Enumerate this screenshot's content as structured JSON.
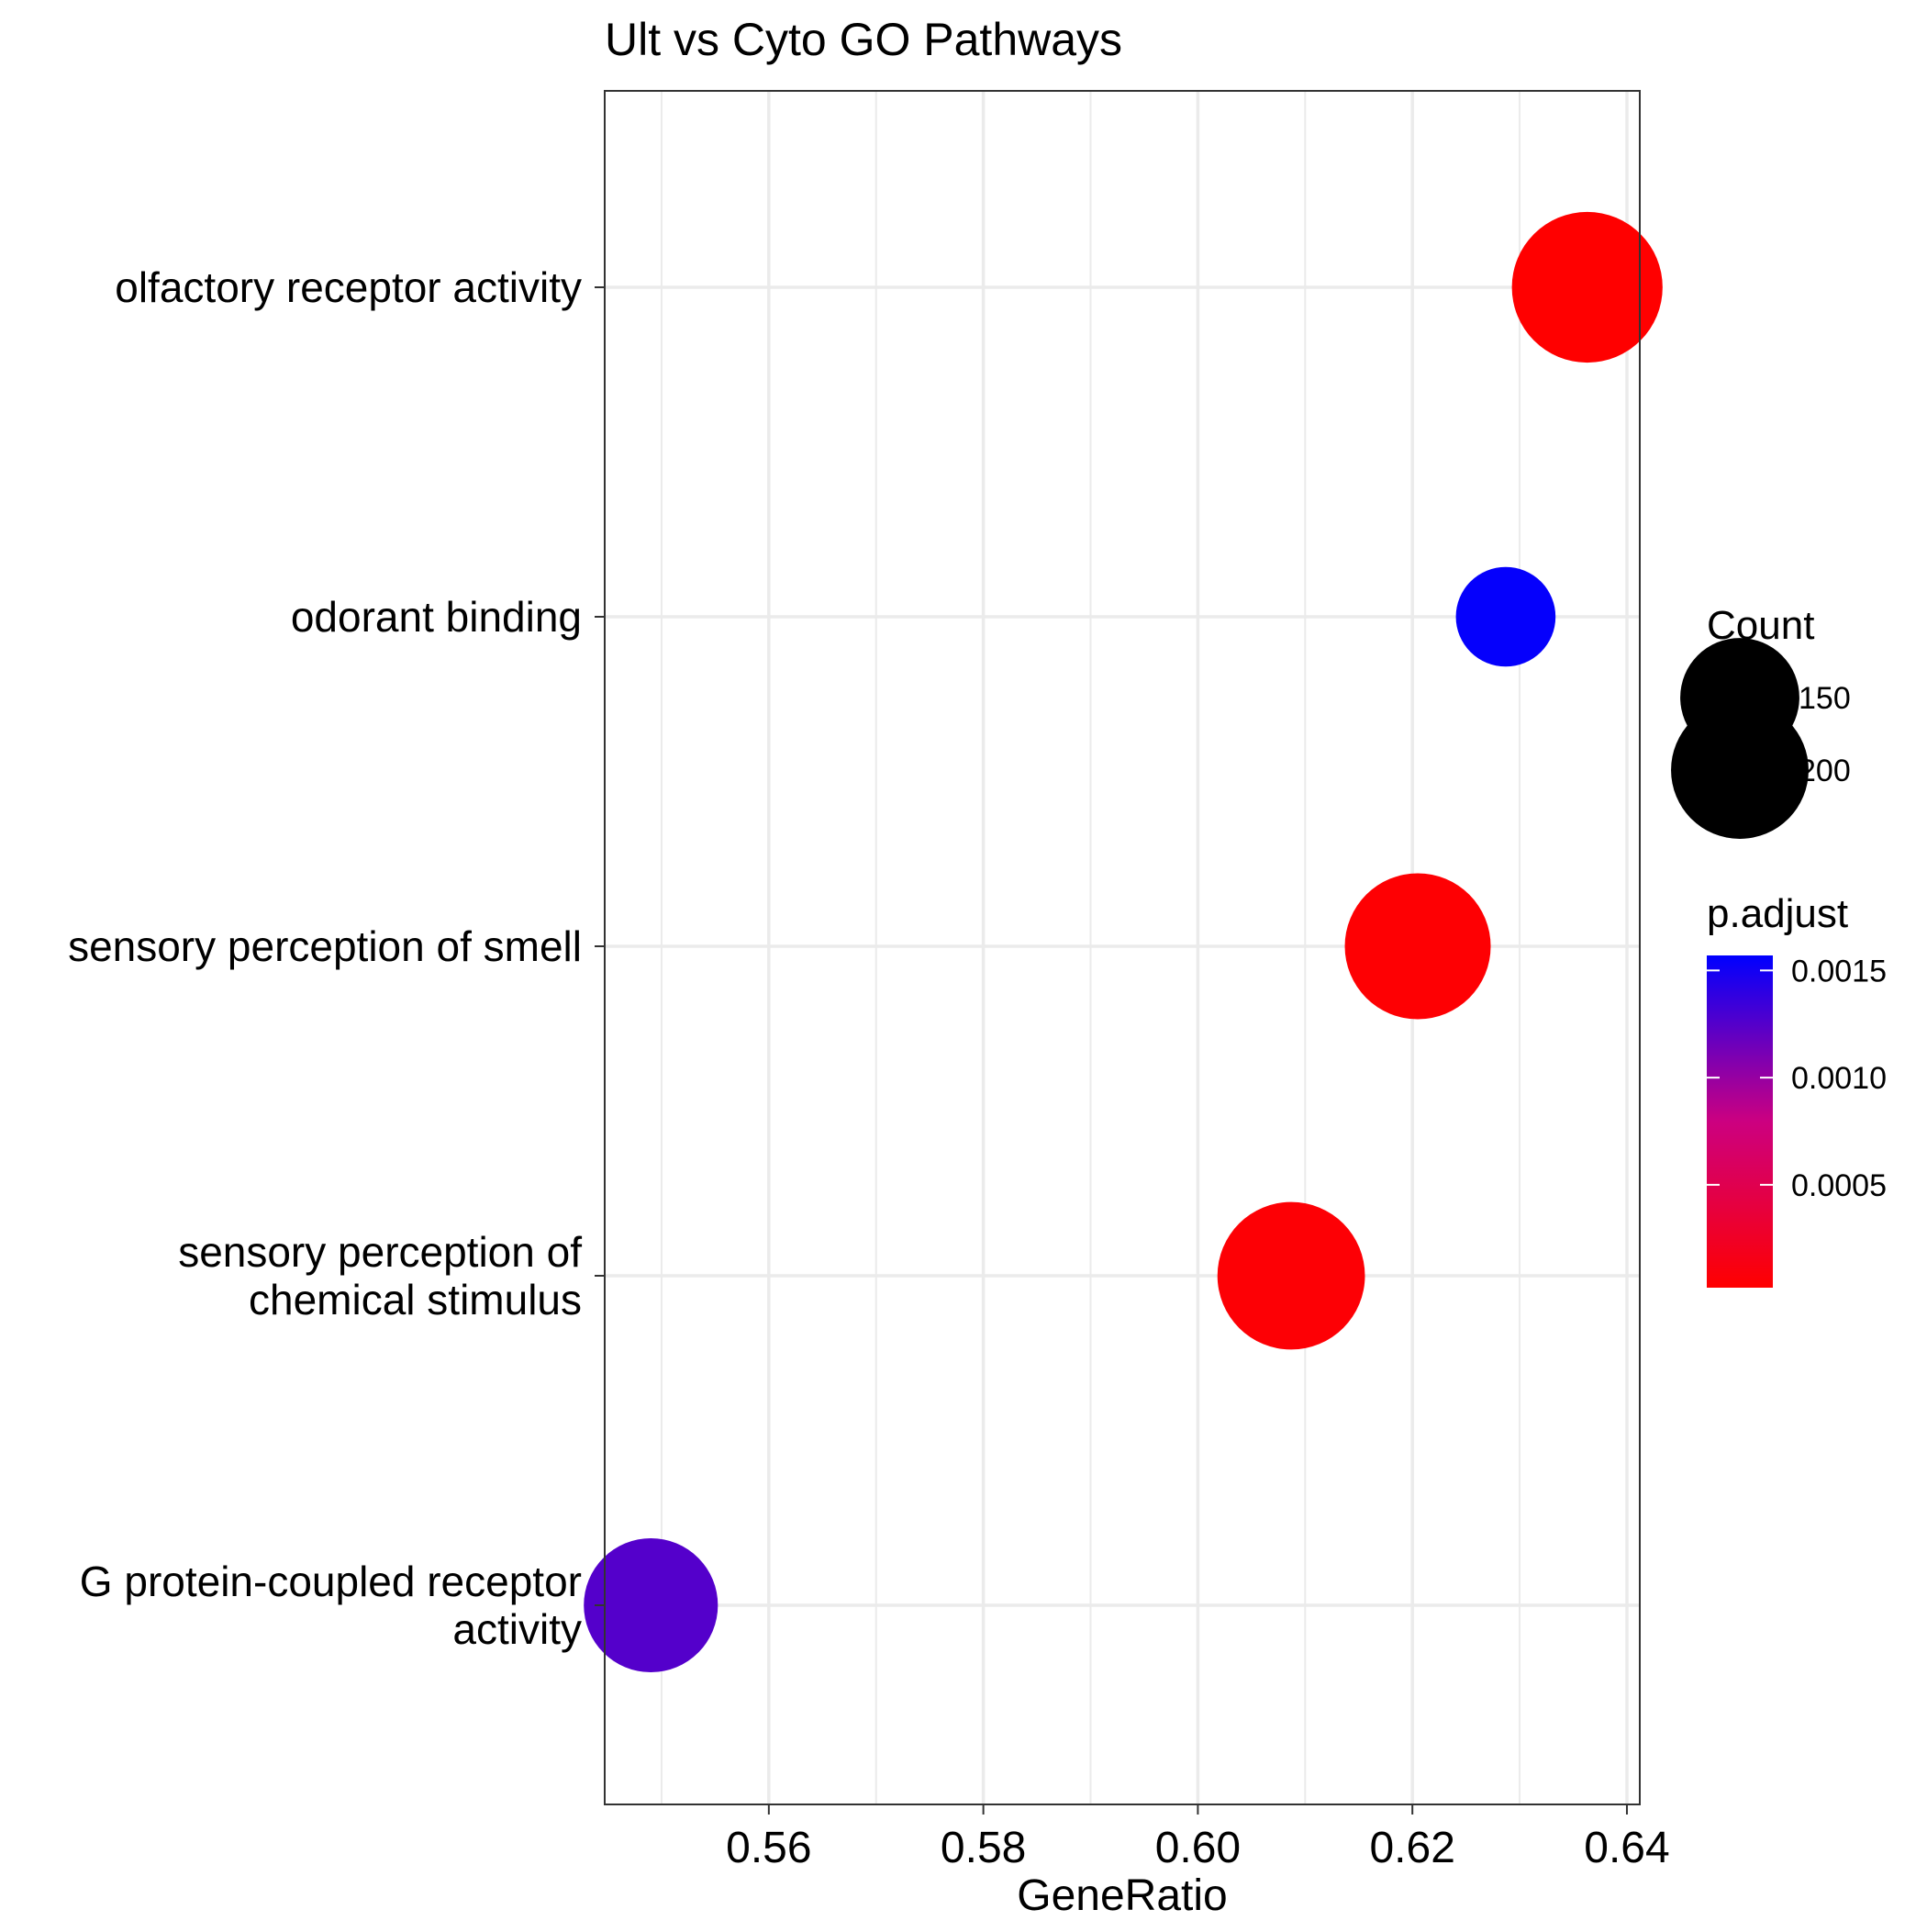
{
  "chart_data": {
    "type": "scatter",
    "title": "Ult vs Cyto GO Pathways",
    "xlabel": "GeneRatio",
    "ylabel": "",
    "xlim": [
      0.5447,
      0.6412
    ],
    "x_ticks": [
      0.56,
      0.58,
      0.6,
      0.62,
      0.64
    ],
    "x_tick_labels": [
      "0.56",
      "0.58",
      "0.60",
      "0.62",
      "0.64"
    ],
    "grid": true,
    "categories": [
      "olfactory receptor activity",
      "odorant binding",
      "sensory perception of smell",
      "sensory perception of chemical stimulus",
      "G protein-coupled receptor activity"
    ],
    "category_label_lines": [
      [
        "olfactory receptor activity"
      ],
      [
        "odorant binding"
      ],
      [
        "sensory perception of smell"
      ],
      [
        "sensory perception of",
        "chemical stimulus"
      ],
      [
        "G protein-coupled receptor",
        "activity"
      ]
    ],
    "points": [
      {
        "category": "olfactory receptor activity",
        "gene_ratio": 0.6363,
        "count": 240,
        "p_adjust": 2e-05
      },
      {
        "category": "odorant binding",
        "gene_ratio": 0.6287,
        "count": 105,
        "p_adjust": 0.00155
      },
      {
        "category": "sensory perception of smell",
        "gene_ratio": 0.6205,
        "count": 225,
        "p_adjust": 4e-05
      },
      {
        "category": "sensory perception of chemical stimulus",
        "gene_ratio": 0.6087,
        "count": 230,
        "p_adjust": 5e-05
      },
      {
        "category": "G protein-coupled receptor activity",
        "gene_ratio": 0.549,
        "count": 190,
        "p_adjust": 0.00125
      }
    ],
    "size_legend": {
      "title": "Count",
      "entries": [
        {
          "label": "150",
          "value": 150
        },
        {
          "label": "200",
          "value": 200
        }
      ]
    },
    "color_legend": {
      "title": "p.adjust",
      "low_color": "#ff0000",
      "high_color": "#0000ff",
      "range": [
        2e-05,
        0.00157
      ],
      "ticks": [
        {
          "label": "0.0005",
          "value": 0.0005
        },
        {
          "label": "0.0010",
          "value": 0.001
        },
        {
          "label": "0.0015",
          "value": 0.0015
        }
      ]
    }
  }
}
